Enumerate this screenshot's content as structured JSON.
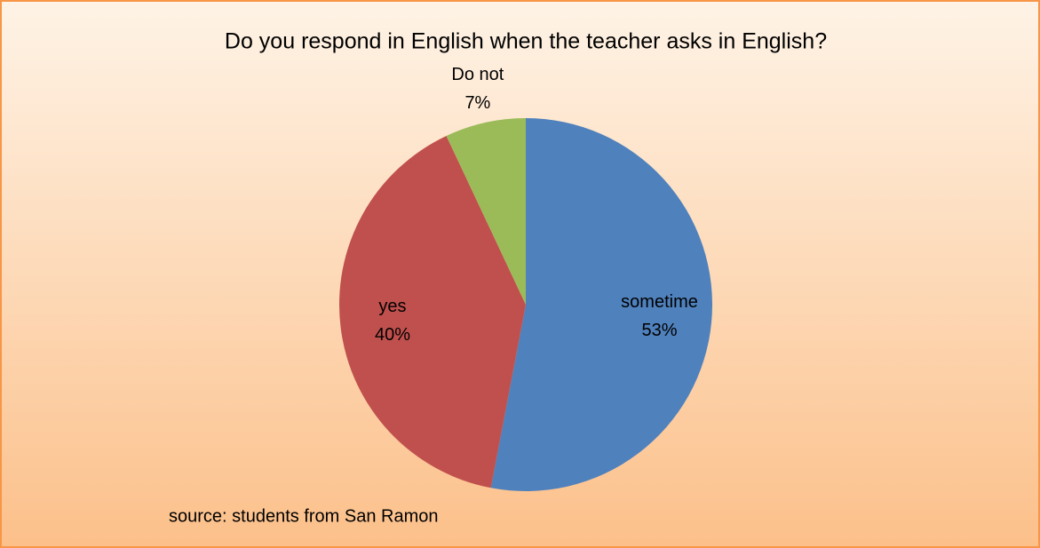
{
  "chart_data": {
    "type": "pie",
    "title": "Do you respond in English when the teacher asks in English?",
    "categories": [
      "sometime",
      "yes",
      "Do not"
    ],
    "values": [
      53,
      40,
      7
    ],
    "value_labels": [
      "53%",
      "40%",
      "7%"
    ],
    "colors": [
      "#4f81bd",
      "#c0504d",
      "#9bbb59"
    ],
    "annotation": "source: students  from San Ramon"
  }
}
